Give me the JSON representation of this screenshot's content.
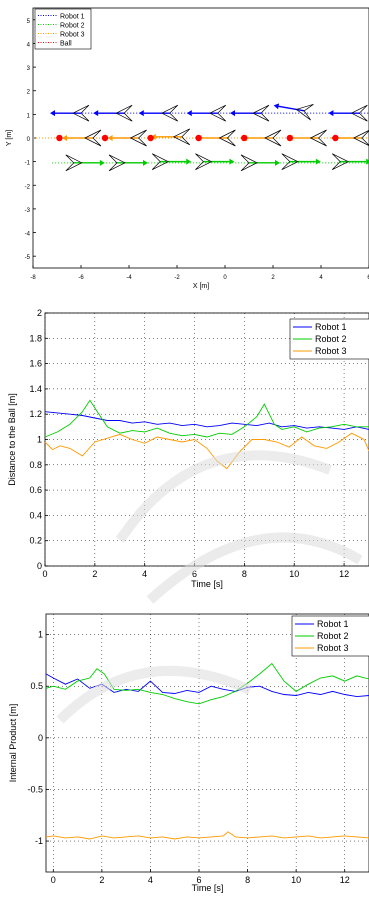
{
  "chart_data": [
    {
      "type": "scatter",
      "xlabel": "X [m]",
      "ylabel": "Y [m]",
      "xlim": [
        -8,
        6
      ],
      "ylim": [
        -5.5,
        5.5
      ],
      "xticks": [
        "-8",
        "-6",
        "-4",
        "-2",
        "0",
        "2",
        "4",
        "6"
      ],
      "yticks": [
        "-5",
        "-4",
        "-3",
        "-2",
        "-1",
        "0",
        "1",
        "2",
        "3",
        "4",
        "5"
      ],
      "legend_position": "top-left",
      "series": [
        {
          "name": "Robot 1",
          "color": "#0000ff",
          "style": "dotted",
          "path_x": [
            -7.2,
            6
          ],
          "path_y": [
            1.05,
            1.05
          ],
          "markers": [
            {
              "x": -6.0,
              "y": 1.05,
              "heading_deg": 180
            },
            {
              "x": -4.2,
              "y": 1.05,
              "heading_deg": 180
            },
            {
              "x": -2.3,
              "y": 1.05,
              "heading_deg": 180
            },
            {
              "x": -0.3,
              "y": 1.05,
              "heading_deg": 180
            },
            {
              "x": 1.5,
              "y": 1.05,
              "heading_deg": 180
            },
            {
              "x": 3.3,
              "y": 1.15,
              "heading_deg": 170
            },
            {
              "x": 5.6,
              "y": 1.05,
              "heading_deg": 180
            }
          ]
        },
        {
          "name": "Robot 2",
          "color": "#00cc00",
          "style": "dotted",
          "path_x": [
            -7.2,
            6
          ],
          "path_y": [
            -1.05,
            -1.05
          ],
          "markers": [
            {
              "x": -6.3,
              "y": -1.05,
              "heading_deg": 0
            },
            {
              "x": -4.5,
              "y": -1.05,
              "heading_deg": 0
            },
            {
              "x": -2.7,
              "y": -1.0,
              "heading_deg": 0
            },
            {
              "x": -0.9,
              "y": -1.0,
              "heading_deg": 0
            },
            {
              "x": 1.0,
              "y": -1.05,
              "heading_deg": 0
            },
            {
              "x": 2.7,
              "y": -1.0,
              "heading_deg": 0
            },
            {
              "x": 4.8,
              "y": -1.0,
              "heading_deg": 0
            }
          ]
        },
        {
          "name": "Robot 3",
          "color": "#ff9900",
          "style": "dotted",
          "path_x": [
            -8,
            6
          ],
          "path_y": [
            0,
            0
          ],
          "markers": [
            {
              "x": -5.5,
              "y": 0,
              "heading_deg": 180
            },
            {
              "x": -3.6,
              "y": 0,
              "heading_deg": 180
            },
            {
              "x": -1.8,
              "y": 0.05,
              "heading_deg": 180
            },
            {
              "x": 0.1,
              "y": 0,
              "heading_deg": 180
            },
            {
              "x": 2.0,
              "y": 0,
              "heading_deg": 180
            },
            {
              "x": 3.9,
              "y": 0,
              "heading_deg": 180
            },
            {
              "x": 5.7,
              "y": 0,
              "heading_deg": 180
            }
          ]
        },
        {
          "name": "Ball",
          "color": "#ff0000",
          "style": "dotted",
          "points_x": [
            -6.9,
            -5.0,
            -3.1,
            -1.1,
            0.8,
            2.7,
            4.6
          ],
          "points_y": [
            0,
            0,
            0,
            0,
            0,
            0,
            0
          ]
        }
      ]
    },
    {
      "type": "line",
      "xlabel": "Time   [s]",
      "ylabel": "Distance to the Ball  [m]",
      "xlim": [
        0,
        13
      ],
      "ylim": [
        0,
        2
      ],
      "xticks": [
        "0",
        "2",
        "4",
        "6",
        "8",
        "10",
        "12"
      ],
      "yticks": [
        "0",
        "0.2",
        "0.4",
        "0.6",
        "0.8",
        "1",
        "1.2",
        "1.4",
        "1.6",
        "1.8",
        "2"
      ],
      "legend_position": "top-right",
      "series": [
        {
          "name": "Robot 1",
          "color": "#0000ff",
          "x": [
            0,
            0.5,
            1,
            1.5,
            2,
            2.5,
            3,
            3.5,
            4,
            4.5,
            5,
            5.5,
            6,
            6.5,
            7,
            7.5,
            8,
            8.5,
            9,
            9.5,
            10,
            10.5,
            11,
            11.5,
            12,
            12.5,
            13
          ],
          "y": [
            1.22,
            1.21,
            1.2,
            1.19,
            1.17,
            1.15,
            1.15,
            1.13,
            1.14,
            1.12,
            1.13,
            1.11,
            1.12,
            1.1,
            1.11,
            1.13,
            1.12,
            1.11,
            1.13,
            1.1,
            1.11,
            1.09,
            1.1,
            1.09,
            1.08,
            1.1,
            1.08
          ]
        },
        {
          "name": "Robot 2",
          "color": "#00cc00",
          "x": [
            0,
            0.5,
            1,
            1.5,
            1.8,
            2.1,
            2.5,
            3,
            3.5,
            4,
            4.5,
            5,
            5.5,
            6,
            6.5,
            7,
            7.5,
            8,
            8.5,
            8.8,
            9.2,
            9.5,
            10,
            10.5,
            11,
            11.5,
            12,
            12.5,
            13
          ],
          "y": [
            1.02,
            1.06,
            1.12,
            1.22,
            1.31,
            1.22,
            1.1,
            1.05,
            1.07,
            1.06,
            1.09,
            1.05,
            1.03,
            1.04,
            1.02,
            1.05,
            1.04,
            1.1,
            1.18,
            1.28,
            1.12,
            1.08,
            1.1,
            1.06,
            1.09,
            1.1,
            1.12,
            1.1,
            1.1
          ]
        },
        {
          "name": "Robot 3",
          "color": "#ff9900",
          "x": [
            0,
            0.3,
            0.6,
            1,
            1.5,
            2,
            2.5,
            3,
            3.5,
            4,
            4.5,
            5,
            5.5,
            6,
            6.5,
            6.9,
            7.3,
            7.8,
            8.3,
            8.8,
            9.3,
            9.8,
            10.3,
            10.8,
            11.3,
            11.8,
            12.3,
            12.8,
            13
          ],
          "y": [
            0.98,
            0.92,
            0.95,
            0.93,
            0.87,
            0.98,
            1.01,
            1.04,
            1.0,
            0.97,
            1.02,
            1.0,
            0.98,
            1.0,
            0.93,
            0.83,
            0.77,
            0.9,
            1.0,
            1.0,
            0.98,
            0.94,
            1.02,
            0.95,
            0.93,
            0.98,
            1.05,
            1.0,
            0.91
          ]
        }
      ]
    },
    {
      "type": "line",
      "xlabel": "Time   [s]",
      "ylabel": "Internal Product  [m]",
      "xlim": [
        -0.3,
        13
      ],
      "ylim": [
        -1.3,
        1.2
      ],
      "xticks": [
        "0",
        "2",
        "4",
        "6",
        "8",
        "10",
        "12"
      ],
      "yticks": [
        "-1",
        "-0.5",
        "0",
        "0.5",
        "1"
      ],
      "legend_position": "top-right",
      "series": [
        {
          "name": "Robot 1",
          "color": "#0000ff",
          "x": [
            -0.3,
            0,
            0.5,
            1,
            1.5,
            2,
            2.5,
            3,
            3.5,
            4,
            4.5,
            5,
            5.5,
            6,
            6.5,
            7,
            7.5,
            8,
            8.5,
            9,
            9.5,
            10,
            10.5,
            11,
            11.5,
            12,
            12.5,
            13
          ],
          "y": [
            0.62,
            0.58,
            0.52,
            0.57,
            0.48,
            0.52,
            0.44,
            0.47,
            0.45,
            0.55,
            0.44,
            0.43,
            0.46,
            0.44,
            0.5,
            0.47,
            0.45,
            0.49,
            0.5,
            0.45,
            0.42,
            0.41,
            0.44,
            0.42,
            0.45,
            0.42,
            0.4,
            0.41
          ]
        },
        {
          "name": "Robot 2",
          "color": "#00cc00",
          "x": [
            -0.3,
            0,
            0.5,
            1,
            1.5,
            1.8,
            2.1,
            2.5,
            3,
            3.5,
            4,
            4.5,
            5,
            5.5,
            6,
            6.5,
            7,
            7.5,
            8,
            8.5,
            9,
            9.5,
            10,
            10.5,
            11,
            11.5,
            12,
            12.5,
            13
          ],
          "y": [
            0.48,
            0.5,
            0.47,
            0.55,
            0.58,
            0.67,
            0.62,
            0.47,
            0.46,
            0.47,
            0.44,
            0.42,
            0.38,
            0.35,
            0.33,
            0.37,
            0.4,
            0.45,
            0.53,
            0.62,
            0.72,
            0.55,
            0.45,
            0.52,
            0.58,
            0.6,
            0.55,
            0.6,
            0.57
          ]
        },
        {
          "name": "Robot 3",
          "color": "#ff9900",
          "x": [
            -0.3,
            0,
            0.5,
            1,
            1.5,
            2,
            2.5,
            3,
            3.5,
            4,
            4.5,
            5,
            5.5,
            6,
            6.5,
            7,
            7.2,
            7.5,
            8,
            8.5,
            9,
            9.5,
            10,
            10.5,
            11,
            11.5,
            12,
            12.5,
            13
          ],
          "y": [
            -0.96,
            -0.95,
            -0.97,
            -0.96,
            -0.98,
            -0.95,
            -0.97,
            -0.96,
            -0.95,
            -0.97,
            -0.96,
            -0.98,
            -0.96,
            -0.97,
            -0.96,
            -0.95,
            -0.91,
            -0.96,
            -0.97,
            -0.96,
            -0.95,
            -0.97,
            -0.96,
            -0.95,
            -0.97,
            -0.96,
            -0.95,
            -0.96,
            -0.97
          ]
        }
      ]
    }
  ]
}
